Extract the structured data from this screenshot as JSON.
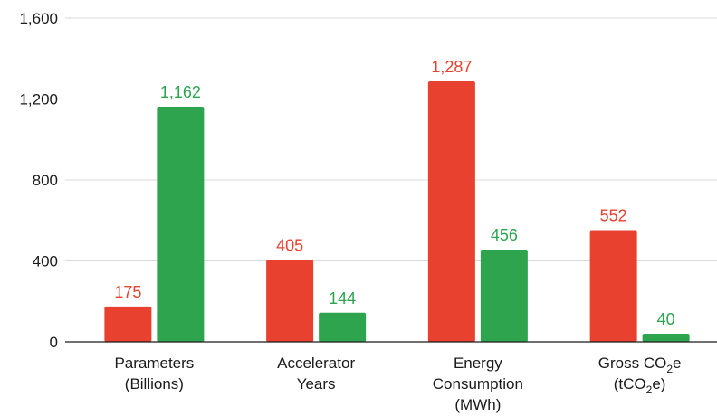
{
  "chart_data": {
    "type": "bar",
    "title": "",
    "xlabel": "",
    "ylabel": "",
    "ylim": [
      0,
      1600
    ],
    "yticks": [
      0,
      400,
      800,
      1200,
      1600
    ],
    "ytick_labels": [
      "0",
      "400",
      "800",
      "1,200",
      "1,600"
    ],
    "grid": true,
    "legend": "none",
    "categories": [
      {
        "lines": [
          [
            {
              "t": "Parameters"
            }
          ],
          [
            {
              "t": "(Billions)"
            }
          ]
        ]
      },
      {
        "lines": [
          [
            {
              "t": "Accelerator"
            }
          ],
          [
            {
              "t": "Years"
            }
          ]
        ]
      },
      {
        "lines": [
          [
            {
              "t": "Energy"
            }
          ],
          [
            {
              "t": "Consumption"
            }
          ],
          [
            {
              "t": "(MWh)"
            }
          ]
        ]
      },
      {
        "lines": [
          [
            {
              "t": "Gross CO"
            },
            {
              "t": "2",
              "sub": true
            },
            {
              "t": "e"
            }
          ],
          [
            {
              "t": "(tCO"
            },
            {
              "t": "2",
              "sub": true
            },
            {
              "t": "e)"
            }
          ]
        ]
      }
    ],
    "series": [
      {
        "color": "#e8412f",
        "values": [
          175,
          405,
          1287,
          552
        ],
        "labels": [
          "175",
          "405",
          "1,287",
          "552"
        ]
      },
      {
        "color": "#2ea44f",
        "values": [
          1162,
          144,
          456,
          40
        ],
        "labels": [
          "1,162",
          "144",
          "456",
          "40"
        ]
      }
    ]
  }
}
